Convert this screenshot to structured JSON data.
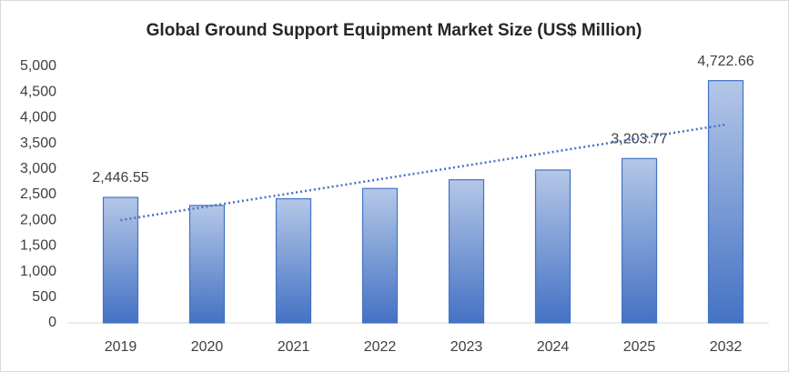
{
  "chart_data": {
    "type": "bar",
    "title": "Global Ground Support Equipment Market Size (US$ Million)",
    "categories": [
      "2019",
      "2020",
      "2021",
      "2022",
      "2023",
      "2024",
      "2025",
      "2032"
    ],
    "values": [
      2446.55,
      2290,
      2420,
      2620,
      2790,
      2980,
      3203.77,
      4722.66
    ],
    "value_labels": [
      "2,446.55",
      null,
      null,
      null,
      null,
      null,
      "3,203.77",
      "4,722.66"
    ],
    "color": "#4472c4",
    "ylim": [
      0,
      5000
    ],
    "yticks": [
      0,
      500,
      {
        "value": 1000,
        "label": "1,000"
      },
      {
        "value": 1500,
        "label": "1,500"
      },
      {
        "value": 2000,
        "label": "2,000"
      },
      {
        "value": 2500,
        "label": "2,500"
      },
      {
        "value": 3000,
        "label": "3,000"
      },
      {
        "value": 3500,
        "label": "3,500"
      },
      {
        "value": 4000,
        "label": "4,000"
      },
      {
        "value": 4500,
        "label": "4,500"
      },
      {
        "value": 5000,
        "label": "5,000"
      }
    ],
    "grid": false,
    "trendline": true
  }
}
